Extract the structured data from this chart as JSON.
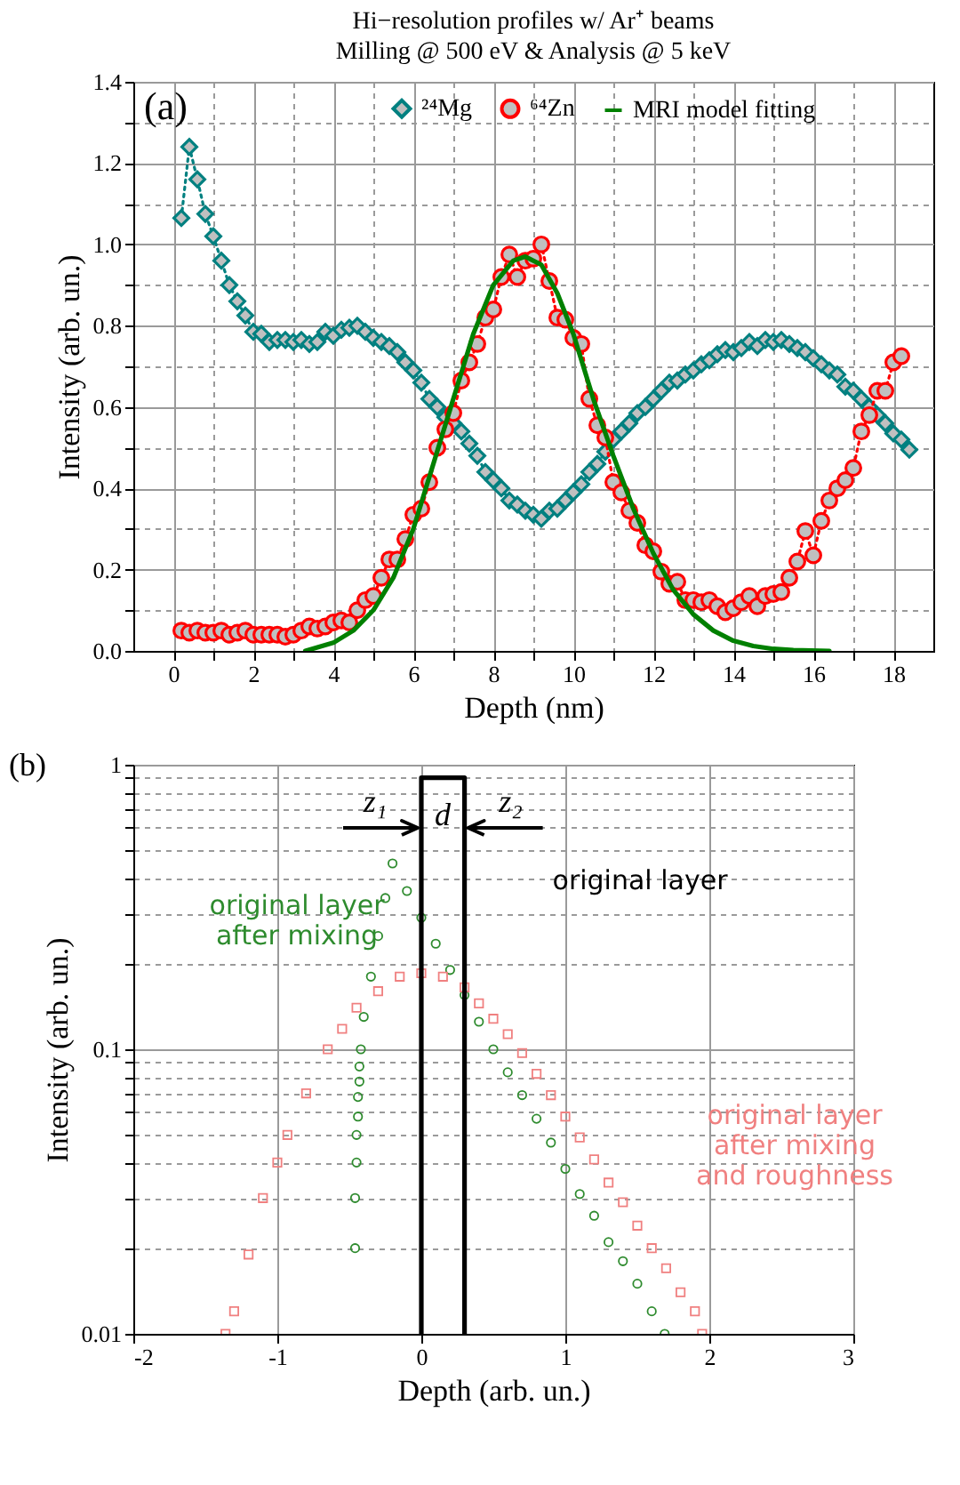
{
  "chart_data": [
    {
      "type": "line",
      "title": "Hi−resolution profiles w/ Ar⁺ beams",
      "subtitle": "Milling @ 500 eV & Analysis @ 5 keV",
      "xlabel": "Depth (nm)",
      "ylabel": "Intensity (arb. un.)",
      "xlim": [
        -1,
        19
      ],
      "xticks": [
        0,
        {
          "value": 1,
          "label": null
        },
        2,
        {
          "value": 3,
          "label": null
        },
        4,
        {
          "value": 5,
          "label": null
        },
        6,
        {
          "value": 7,
          "label": null
        },
        8,
        {
          "value": 9,
          "label": null
        },
        10,
        {
          "value": 11,
          "label": null
        },
        12,
        {
          "value": 13,
          "label": null
        },
        14,
        {
          "value": 15,
          "label": null
        },
        16,
        {
          "value": 17,
          "label": null
        },
        18
      ],
      "ylim": [
        0,
        1.4
      ],
      "yticks": [
        {
          "value": 0,
          "label": "0.0"
        },
        {
          "value": 0.1,
          "label": null
        },
        0.2,
        {
          "value": 0.3,
          "label": null
        },
        0.4,
        {
          "value": 0.5,
          "label": null
        },
        0.6,
        {
          "value": 0.7,
          "label": null
        },
        0.8,
        {
          "value": 0.9,
          "label": null
        },
        {
          "value": 1.0,
          "label": "1.0"
        },
        {
          "value": 1.1,
          "label": null
        },
        1.2,
        {
          "value": 1.3,
          "label": null
        },
        1.4
      ],
      "grid": true,
      "legend": "top",
      "annotations": [
        "(a)"
      ],
      "series": [
        {
          "name": "²⁴Mg",
          "color": "#008080",
          "marker": "diamond",
          "line_style": "dotted",
          "x": [
            0.2,
            0.4,
            0.6,
            0.8,
            1.0,
            1.2,
            1.4,
            1.6,
            1.8,
            2.0,
            2.2,
            2.4,
            2.6,
            2.8,
            3.0,
            3.2,
            3.4,
            3.6,
            3.8,
            4.0,
            4.2,
            4.4,
            4.6,
            4.8,
            5.0,
            5.2,
            5.4,
            5.6,
            5.8,
            6.0,
            6.2,
            6.4,
            6.6,
            6.8,
            7.0,
            7.2,
            7.4,
            7.6,
            7.8,
            8.0,
            8.2,
            8.4,
            8.6,
            8.8,
            9.0,
            9.2,
            9.4,
            9.6,
            9.8,
            10.0,
            10.2,
            10.4,
            10.6,
            10.8,
            11.0,
            11.2,
            11.4,
            11.6,
            11.8,
            12.0,
            12.2,
            12.4,
            12.6,
            12.8,
            13.0,
            13.2,
            13.4,
            13.6,
            13.8,
            14.0,
            14.2,
            14.4,
            14.6,
            14.8,
            15.0,
            15.2,
            15.4,
            15.6,
            15.8,
            16.0,
            16.2,
            16.4,
            16.6,
            16.8,
            17.0,
            17.2,
            17.4,
            17.6,
            17.8,
            18.0,
            18.2,
            18.4
          ],
          "values": [
            1.065,
            1.24,
            1.16,
            1.075,
            1.02,
            0.96,
            0.9,
            0.86,
            0.825,
            0.785,
            0.78,
            0.76,
            0.765,
            0.765,
            0.76,
            0.765,
            0.755,
            0.76,
            0.785,
            0.775,
            0.79,
            0.795,
            0.8,
            0.785,
            0.77,
            0.76,
            0.75,
            0.735,
            0.71,
            0.69,
            0.66,
            0.62,
            0.6,
            0.575,
            0.56,
            0.54,
            0.51,
            0.48,
            0.44,
            0.42,
            0.4,
            0.37,
            0.36,
            0.345,
            0.335,
            0.325,
            0.345,
            0.35,
            0.37,
            0.39,
            0.41,
            0.44,
            0.46,
            0.49,
            0.52,
            0.54,
            0.56,
            0.585,
            0.6,
            0.62,
            0.64,
            0.66,
            0.665,
            0.68,
            0.69,
            0.705,
            0.715,
            0.73,
            0.74,
            0.735,
            0.745,
            0.76,
            0.75,
            0.765,
            0.76,
            0.765,
            0.755,
            0.745,
            0.735,
            0.72,
            0.705,
            0.69,
            0.68,
            0.65,
            0.64,
            0.62,
            0.6,
            0.58,
            0.56,
            0.535,
            0.52,
            0.495
          ]
        },
        {
          "name": "⁶⁴Zn",
          "color": "#ff0000",
          "marker": "circle",
          "line_style": "dotted",
          "x": [
            0.2,
            0.4,
            0.6,
            0.8,
            1.0,
            1.2,
            1.4,
            1.6,
            1.8,
            2.0,
            2.2,
            2.4,
            2.6,
            2.8,
            3.0,
            3.2,
            3.4,
            3.6,
            3.8,
            4.0,
            4.2,
            4.4,
            4.6,
            4.8,
            5.0,
            5.2,
            5.4,
            5.6,
            5.8,
            6.0,
            6.2,
            6.4,
            6.6,
            6.8,
            7.0,
            7.2,
            7.4,
            7.6,
            7.8,
            8.0,
            8.2,
            8.4,
            8.6,
            8.8,
            9.0,
            9.2,
            9.4,
            9.6,
            9.8,
            10.0,
            10.2,
            10.4,
            10.6,
            10.8,
            11.0,
            11.2,
            11.4,
            11.6,
            11.8,
            12.0,
            12.2,
            12.4,
            12.6,
            12.8,
            13.0,
            13.2,
            13.4,
            13.6,
            13.8,
            14.0,
            14.2,
            14.4,
            14.6,
            14.8,
            15.0,
            15.2,
            15.4,
            15.6,
            15.8,
            16.0,
            16.2,
            16.4,
            16.6,
            16.8,
            17.0,
            17.2,
            17.4,
            17.6,
            17.8,
            18.0,
            18.2
          ],
          "values": [
            0.05,
            0.045,
            0.05,
            0.045,
            0.045,
            0.05,
            0.04,
            0.045,
            0.05,
            0.04,
            0.04,
            0.04,
            0.04,
            0.035,
            0.04,
            0.05,
            0.06,
            0.055,
            0.06,
            0.07,
            0.075,
            0.07,
            0.1,
            0.125,
            0.135,
            0.18,
            0.225,
            0.225,
            0.275,
            0.335,
            0.35,
            0.415,
            0.5,
            0.545,
            0.585,
            0.665,
            0.71,
            0.755,
            0.82,
            0.84,
            0.92,
            0.975,
            0.92,
            0.96,
            0.965,
            1.0,
            0.91,
            0.82,
            0.815,
            0.77,
            0.755,
            0.62,
            0.555,
            0.525,
            0.415,
            0.39,
            0.345,
            0.315,
            0.26,
            0.245,
            0.195,
            0.165,
            0.17,
            0.125,
            0.125,
            0.12,
            0.125,
            0.11,
            0.095,
            0.105,
            0.12,
            0.135,
            0.11,
            0.135,
            0.14,
            0.145,
            0.18,
            0.22,
            0.295,
            0.235,
            0.32,
            0.37,
            0.4,
            0.42,
            0.45,
            0.54,
            0.58,
            0.64,
            0.64,
            0.71,
            0.725
          ]
        },
        {
          "name": "MRI model fitting",
          "color": "#008000",
          "marker": "none",
          "line_style": "solid",
          "x": [
            3.3,
            4,
            4.5,
            5,
            5.5,
            6,
            6.5,
            7,
            7.5,
            8,
            8.5,
            8.8,
            9.2,
            9.6,
            10,
            10.5,
            11,
            11.5,
            12,
            12.5,
            13,
            13.5,
            14,
            14.5,
            15,
            15.5,
            16.4
          ],
          "values": [
            0,
            0.02,
            0.05,
            0.1,
            0.18,
            0.3,
            0.46,
            0.62,
            0.78,
            0.9,
            0.96,
            0.97,
            0.95,
            0.88,
            0.78,
            0.62,
            0.48,
            0.35,
            0.24,
            0.15,
            0.09,
            0.05,
            0.025,
            0.012,
            0.005,
            0.002,
            0
          ]
        }
      ]
    },
    {
      "type": "scatter",
      "xlabel": "Depth (arb. un.)",
      "ylabel": "Intensity (arb. un.)",
      "log": "y",
      "xlim": [
        -2,
        3
      ],
      "xticks": [
        -2,
        -1,
        0,
        1,
        2,
        3
      ],
      "ylim": [
        0.01,
        1
      ],
      "yticks": [
        0.01,
        {
          "value": 0.02,
          "label": null
        },
        {
          "value": 0.03,
          "label": null
        },
        {
          "value": 0.04,
          "label": null
        },
        {
          "value": 0.05,
          "label": null
        },
        {
          "value": 0.06,
          "label": null
        },
        {
          "value": 0.07,
          "label": null
        },
        {
          "value": 0.08,
          "label": null
        },
        {
          "value": 0.09,
          "label": null
        },
        0.1,
        {
          "value": 0.2,
          "label": null
        },
        {
          "value": 0.3,
          "label": null
        },
        {
          "value": 0.4,
          "label": null
        },
        {
          "value": 0.5,
          "label": null
        },
        {
          "value": 0.6,
          "label": null
        },
        {
          "value": 0.7,
          "label": null
        },
        {
          "value": 0.8,
          "label": null
        },
        {
          "value": 0.9,
          "label": null
        },
        1
      ],
      "grid": true,
      "legend": false,
      "annotations": [
        "(b)",
        {
          "text": "z₁",
          "x": 0,
          "y": 0.6
        },
        "d",
        {
          "text": "z₂",
          "x": 0.3,
          "y": 0.6
        }
      ],
      "series": [
        {
          "name": "original layer\nafter mixing",
          "color": "#2e8b2e",
          "marker": "circle",
          "x": [
            -0.46,
            -0.46,
            -0.45,
            -0.45,
            -0.44,
            -0.44,
            -0.43,
            -0.43,
            -0.42,
            -0.4,
            -0.35,
            -0.3,
            -0.25,
            -0.2,
            -0.1,
            0,
            0.1,
            0.2,
            0.3,
            0.4,
            0.5,
            0.6,
            0.7,
            0.8,
            0.9,
            1.0,
            1.1,
            1.2,
            1.3,
            1.4,
            1.5,
            1.6,
            1.69
          ],
          "values": [
            0.02,
            0.03,
            0.04,
            0.05,
            0.058,
            0.068,
            0.077,
            0.087,
            0.1,
            0.13,
            0.18,
            0.25,
            0.34,
            0.45,
            0.36,
            0.29,
            0.235,
            0.19,
            0.155,
            0.125,
            0.1,
            0.083,
            0.069,
            0.057,
            0.047,
            0.038,
            0.031,
            0.026,
            0.021,
            0.018,
            0.015,
            0.012,
            0.01
          ]
        },
        {
          "name": "original layer\nafter mixing\nand roughness",
          "color": "#f08080",
          "marker": "square",
          "x": [
            -1.36,
            -1.3,
            -1.2,
            -1.1,
            -1.0,
            -0.93,
            -0.8,
            -0.65,
            -0.55,
            -0.45,
            -0.3,
            -0.15,
            0,
            0.15,
            0.3,
            0.4,
            0.5,
            0.6,
            0.7,
            0.8,
            0.9,
            1.0,
            1.1,
            1.2,
            1.3,
            1.4,
            1.5,
            1.6,
            1.7,
            1.8,
            1.9,
            1.95
          ],
          "values": [
            0.01,
            0.012,
            0.019,
            0.03,
            0.04,
            0.05,
            0.07,
            0.1,
            0.118,
            0.14,
            0.16,
            0.18,
            0.185,
            0.18,
            0.165,
            0.145,
            0.128,
            0.113,
            0.097,
            0.082,
            0.069,
            0.058,
            0.049,
            0.041,
            0.034,
            0.029,
            0.024,
            0.02,
            0.017,
            0.014,
            0.012,
            0.01
          ]
        },
        {
          "name": "original layer",
          "type": "line",
          "color": "#000000",
          "marker": "none",
          "line_style": "solid",
          "x": [
            0,
            0,
            0.3,
            0.3
          ],
          "values": [
            0.01,
            0.9,
            0.9,
            0.01
          ]
        }
      ]
    }
  ]
}
